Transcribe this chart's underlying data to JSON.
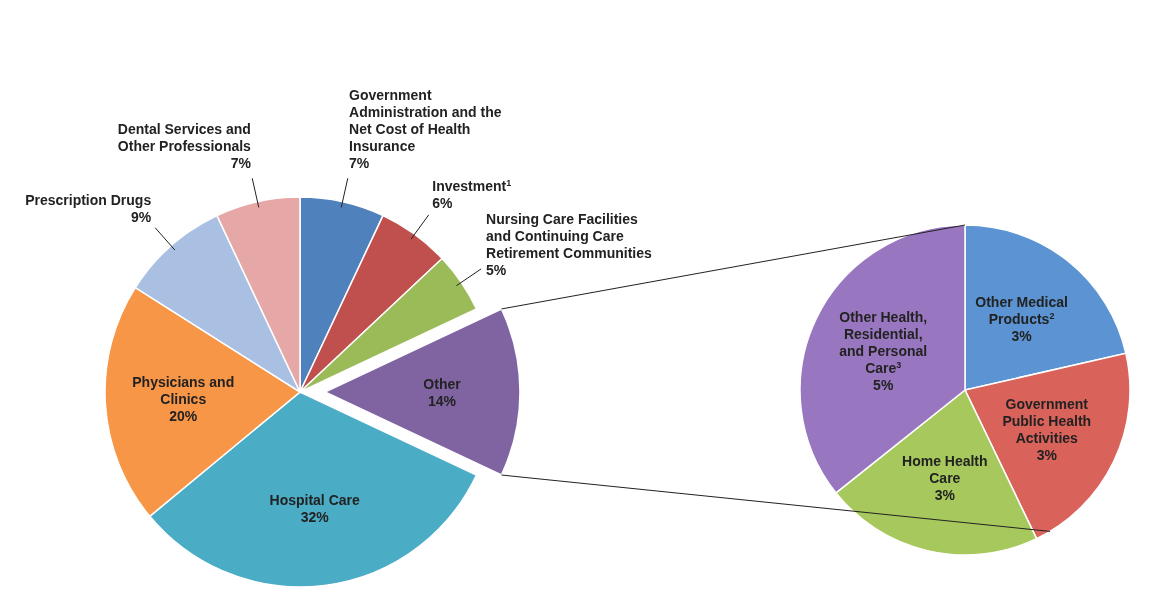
{
  "chart_data": [
    {
      "type": "pie",
      "categories": [
        "Government Administration and the Net Cost of Health Insurance",
        "Investment$^{1}$",
        "Nursing Care Facilities and Continuing Care Retirement Communities",
        "Other",
        "Hospital Care",
        "Physicians and Clinics",
        "Prescription Drugs",
        "Dental Services and Other Professionals"
      ],
      "values": [
        7,
        6,
        5,
        14,
        32,
        20,
        9,
        7
      ],
      "value_labels": [
        "7%",
        "6%",
        "5%",
        "14%",
        "32%",
        "20%",
        "9%",
        "7%"
      ],
      "colors": [
        "#4f81bd",
        "#c0504d",
        "#9bbb59",
        "#8064a2",
        "#4bacc6",
        "#f79646",
        "#a9c0e3",
        "#e6a7a7"
      ]
    },
    {
      "type": "pie",
      "categories": [
        "Other Medical Products$^{2}$",
        "Government Public Health Activities",
        "Home Health Care",
        "Other Health, Residential, and Personal Care$^{3}$"
      ],
      "values": [
        3,
        3,
        3,
        5
      ],
      "value_labels": [
        "3%",
        "3%",
        "3%",
        "5%"
      ],
      "colors": [
        "#5b93d3",
        "#d9625a",
        "#a6c85c",
        "#9977c0"
      ]
    }
  ]
}
